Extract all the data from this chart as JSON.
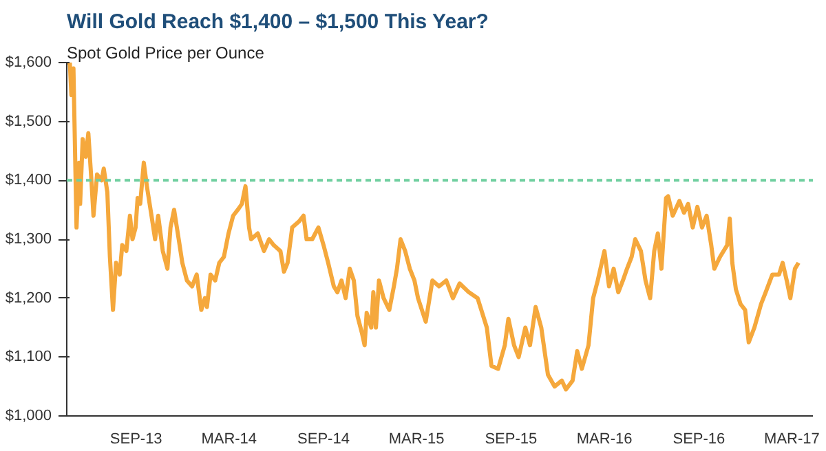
{
  "chart_data": {
    "type": "line",
    "title": "Will Gold Reach $1,400 – $1,500 This Year?",
    "subtitle": "Spot Gold Price per Ounce",
    "x": [
      "2013-04-19",
      "2013-04-25",
      "2013-04-28",
      "2013-05-02",
      "2013-05-04",
      "2013-05-08",
      "2013-05-13",
      "2013-05-15",
      "2013-05-20",
      "2013-05-26",
      "2013-05-31",
      "2013-06-06",
      "2013-06-10",
      "2013-06-17",
      "2013-06-26",
      "2013-06-30",
      "2013-07-07",
      "2013-07-12",
      "2013-07-18",
      "2013-07-24",
      "2013-07-31",
      "2013-08-05",
      "2013-08-13",
      "2013-08-20",
      "2013-08-25",
      "2013-08-31",
      "2013-09-04",
      "2013-09-09",
      "2013-09-16",
      "2013-09-22",
      "2013-10-01",
      "2013-10-08",
      "2013-10-14",
      "2013-10-23",
      "2013-11-01",
      "2013-11-07",
      "2013-11-14",
      "2013-11-23",
      "2013-11-30",
      "2013-12-09",
      "2013-12-19",
      "2013-12-28",
      "2014-01-06",
      "2014-01-13",
      "2014-01-17",
      "2014-01-24",
      "2014-02-02",
      "2014-02-10",
      "2014-02-19",
      "2014-02-28",
      "2014-03-09",
      "2014-03-18",
      "2014-03-26",
      "2014-04-02",
      "2014-04-09",
      "2014-04-13",
      "2014-04-26",
      "2014-05-08",
      "2014-05-18",
      "2014-05-27",
      "2014-06-09",
      "2014-06-16",
      "2014-06-23",
      "2014-07-02",
      "2014-07-15",
      "2014-07-24",
      "2014-07-30",
      "2014-08-10",
      "2014-08-22",
      "2014-09-01",
      "2014-09-10",
      "2014-09-21",
      "2014-09-28",
      "2014-10-06",
      "2014-10-14",
      "2014-10-22",
      "2014-10-30",
      "2014-11-06",
      "2014-11-15",
      "2014-11-20",
      "2014-11-24",
      "2014-12-03",
      "2014-12-07",
      "2014-12-12",
      "2014-12-18",
      "2014-12-27",
      "2015-01-07",
      "2015-01-16",
      "2015-01-22",
      "2015-01-29",
      "2015-02-07",
      "2015-02-16",
      "2015-02-25",
      "2015-03-04",
      "2015-03-19",
      "2015-04-01",
      "2015-04-14",
      "2015-04-28",
      "2015-05-11",
      "2015-05-24",
      "2015-06-11",
      "2015-06-28",
      "2015-07-16",
      "2015-07-25",
      "2015-08-07",
      "2015-08-20",
      "2015-08-27",
      "2015-09-07",
      "2015-09-16",
      "2015-09-29",
      "2015-10-08",
      "2015-10-19",
      "2015-10-30",
      "2015-11-12",
      "2015-11-25",
      "2015-12-09",
      "2015-12-17",
      "2015-12-30",
      "2016-01-08",
      "2016-01-17",
      "2016-01-30",
      "2016-02-08",
      "2016-02-17",
      "2016-03-01",
      "2016-03-10",
      "2016-03-19",
      "2016-03-28",
      "2016-04-06",
      "2016-04-14",
      "2016-04-23",
      "2016-04-30",
      "2016-05-11",
      "2016-05-20",
      "2016-05-29",
      "2016-06-06",
      "2016-06-13",
      "2016-06-20",
      "2016-06-29",
      "2016-07-03",
      "2016-07-12",
      "2016-07-25",
      "2016-08-03",
      "2016-08-11",
      "2016-08-20",
      "2016-08-29",
      "2016-09-07",
      "2016-09-16",
      "2016-09-25",
      "2016-10-01",
      "2016-10-12",
      "2016-10-26",
      "2016-10-31",
      "2016-11-05",
      "2016-11-12",
      "2016-11-21",
      "2016-11-30",
      "2016-12-07",
      "2016-12-18",
      "2016-12-31",
      "2017-01-09",
      "2017-01-22",
      "2017-02-04",
      "2017-02-11",
      "2017-02-19",
      "2017-02-26",
      "2017-03-07",
      "2017-03-14"
    ],
    "series": [
      {
        "color": "#f5a83c",
        "values": [
          1600,
          1600,
          1545,
          1590,
          1500,
          1320,
          1430,
          1360,
          1470,
          1440,
          1480,
          1400,
          1340,
          1410,
          1400,
          1420,
          1380,
          1270,
          1180,
          1260,
          1240,
          1290,
          1280,
          1340,
          1300,
          1320,
          1370,
          1360,
          1430,
          1390,
          1340,
          1300,
          1340,
          1280,
          1250,
          1320,
          1350,
          1300,
          1260,
          1230,
          1220,
          1240,
          1180,
          1200,
          1185,
          1240,
          1230,
          1260,
          1270,
          1310,
          1340,
          1350,
          1360,
          1390,
          1320,
          1300,
          1310,
          1280,
          1300,
          1290,
          1280,
          1245,
          1260,
          1320,
          1330,
          1340,
          1300,
          1300,
          1320,
          1290,
          1260,
          1220,
          1210,
          1230,
          1200,
          1250,
          1230,
          1170,
          1140,
          1120,
          1175,
          1150,
          1210,
          1150,
          1230,
          1200,
          1180,
          1220,
          1250,
          1300,
          1280,
          1250,
          1230,
          1200,
          1160,
          1230,
          1220,
          1230,
          1200,
          1225,
          1210,
          1200,
          1150,
          1085,
          1080,
          1120,
          1165,
          1120,
          1100,
          1150,
          1120,
          1185,
          1150,
          1070,
          1050,
          1060,
          1045,
          1060,
          1110,
          1080,
          1120,
          1200,
          1230,
          1280,
          1220,
          1250,
          1210,
          1230,
          1250,
          1270,
          1300,
          1280,
          1230,
          1200,
          1280,
          1310,
          1250,
          1370,
          1373,
          1340,
          1365,
          1345,
          1360,
          1320,
          1355,
          1320,
          1340,
          1290,
          1250,
          1270,
          1290,
          1335,
          1260,
          1215,
          1190,
          1180,
          1125,
          1150,
          1190,
          1210,
          1240,
          1240,
          1260,
          1230,
          1200,
          1250,
          1260
        ]
      }
    ],
    "ylim": [
      1000,
      1600
    ],
    "yticks": [
      {
        "value": 1000,
        "label": "$1,000"
      },
      {
        "value": 1100,
        "label": "$1,100"
      },
      {
        "value": 1200,
        "label": "$1,200"
      },
      {
        "value": 1300,
        "label": "$1,300"
      },
      {
        "value": 1400,
        "label": "$1,400"
      },
      {
        "value": 1500,
        "label": "$1,500"
      },
      {
        "value": 1600,
        "label": "$1,600"
      }
    ],
    "xlim": [
      "2013-04-19",
      "2017-04-11"
    ],
    "xticks": [
      {
        "value": "2013-09-01",
        "label": "SEP-13"
      },
      {
        "value": "2014-03-01",
        "label": "MAR-14"
      },
      {
        "value": "2014-09-01",
        "label": "SEP-14"
      },
      {
        "value": "2015-03-01",
        "label": "MAR-15"
      },
      {
        "value": "2015-09-01",
        "label": "SEP-15"
      },
      {
        "value": "2016-03-01",
        "label": "MAR-16"
      },
      {
        "value": "2016-09-01",
        "label": "SEP-16"
      },
      {
        "value": "2017-03-01",
        "label": "MAR-17"
      }
    ],
    "ref_lines": [
      {
        "axis": "y",
        "value": 1400,
        "label": null,
        "color": "#6fcf9f",
        "line_style": "dashed"
      }
    ],
    "grid": false,
    "marker": "none",
    "line_style": "solid"
  }
}
